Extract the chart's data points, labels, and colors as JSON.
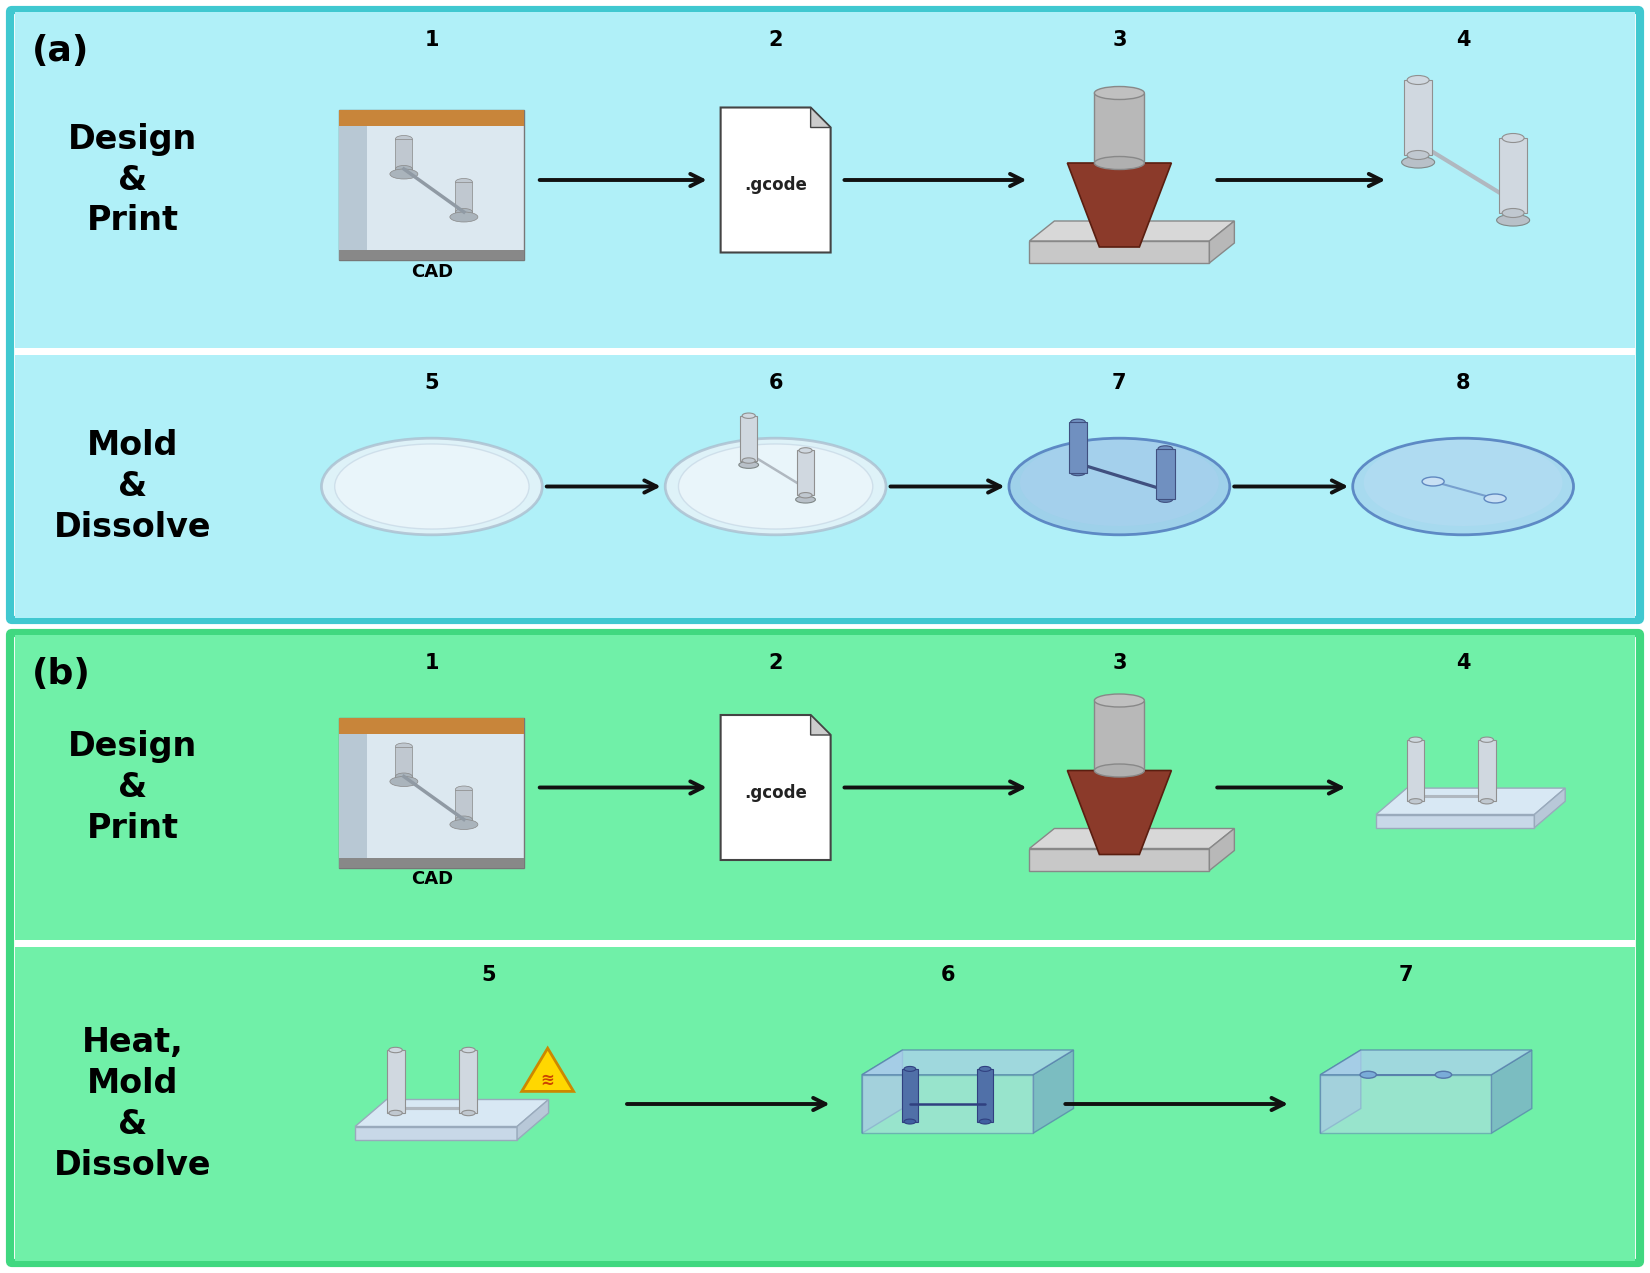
{
  "panel_a_bg": "#B0F0F8",
  "panel_b_bg": "#70F0A8",
  "border_color_a": "#40C8D0",
  "border_color_b": "#40D880",
  "white_gap": "#ffffff",
  "panel_a_row1_label": "Design\n&\nPrint",
  "panel_a_row2_label": "Mold\n&\nDissolve",
  "panel_b_row1_label": "Design\n&\nPrint",
  "panel_b_row2_label": "Heat,\nMold\n&\nDissolve",
  "arrow_color": "#111111",
  "text_color": "#000000",
  "cad_label": "CAD",
  "gcode_label": ".gcode",
  "panel_a_label": "(a)",
  "panel_b_label": "(b)",
  "step_fontsize": 15,
  "label_fontsize": 24,
  "panel_label_fontsize": 26
}
